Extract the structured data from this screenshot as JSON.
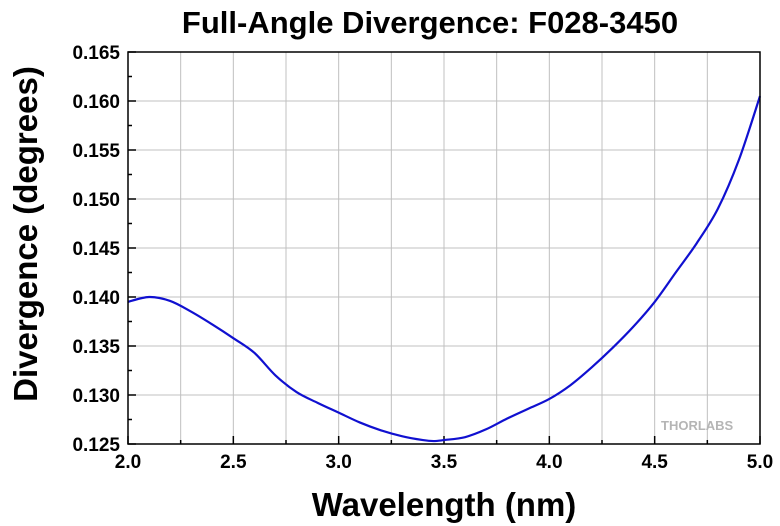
{
  "chart_data": {
    "type": "line",
    "title": "Full-Angle Divergence: F028-3450",
    "xlabel": "Wavelength (nm)",
    "ylabel": "Divergence (degrees)",
    "xlim": [
      2.0,
      5.0
    ],
    "ylim": [
      0.125,
      0.165
    ],
    "xticks": [
      "2.0",
      "2.5",
      "3.0",
      "3.5",
      "4.0",
      "4.5",
      "5.0"
    ],
    "yticks": [
      "0.125",
      "0.130",
      "0.135",
      "0.140",
      "0.145",
      "0.150",
      "0.155",
      "0.160",
      "0.165"
    ],
    "grid": true,
    "series": [
      {
        "color": "#1010d0",
        "x": [
          2.0,
          2.1,
          2.2,
          2.3,
          2.4,
          2.5,
          2.6,
          2.7,
          2.8,
          2.9,
          3.0,
          3.1,
          3.2,
          3.3,
          3.4,
          3.45,
          3.5,
          3.6,
          3.7,
          3.8,
          3.9,
          4.0,
          4.1,
          4.2,
          4.3,
          4.4,
          4.5,
          4.6,
          4.7,
          4.8,
          4.9,
          5.0
        ],
        "y": [
          0.1395,
          0.14,
          0.1396,
          0.1385,
          0.1372,
          0.1358,
          0.1343,
          0.132,
          0.1303,
          0.1292,
          0.1282,
          0.1272,
          0.1264,
          0.1258,
          0.1254,
          0.1253,
          0.1254,
          0.1257,
          0.1265,
          0.1276,
          0.1286,
          0.1296,
          0.131,
          0.1328,
          0.1348,
          0.137,
          0.1395,
          0.1425,
          0.1455,
          0.149,
          0.154,
          0.1605
        ]
      }
    ],
    "watermark": "THORLABS"
  }
}
